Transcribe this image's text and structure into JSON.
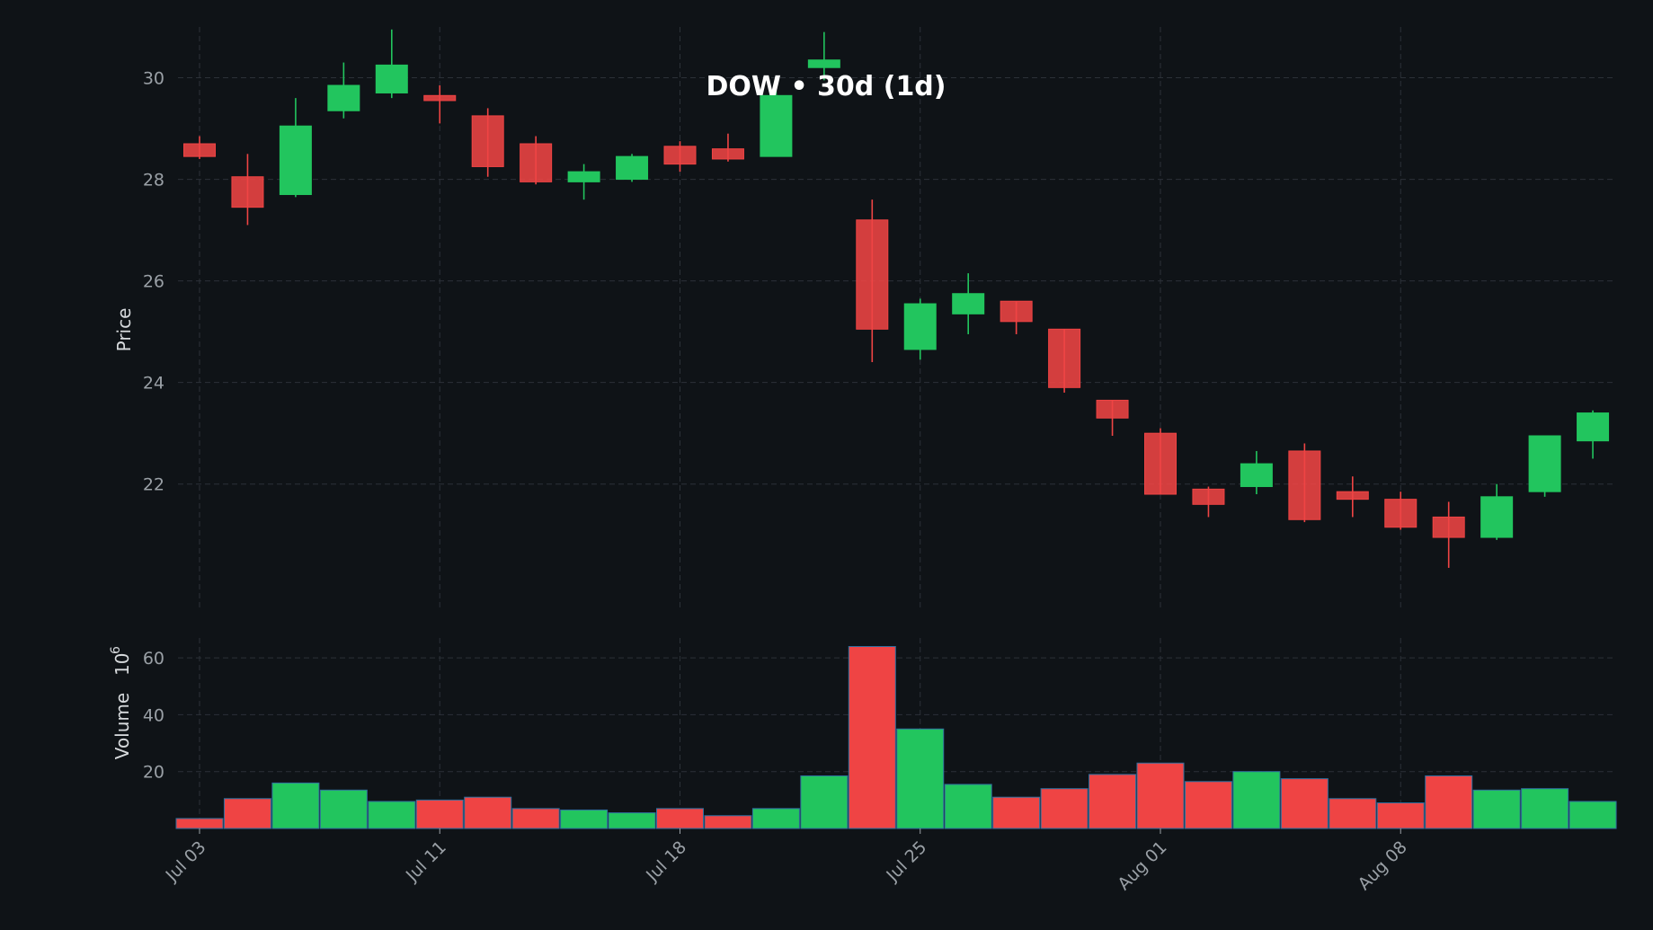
{
  "chart_data": {
    "type": "candlestick",
    "title": "DOW • 30d (1d)",
    "price_panel": {
      "ylabel": "Price",
      "ylim": [
        19.5,
        31.0
      ],
      "yticks": [
        22,
        24,
        26,
        28,
        30
      ],
      "grid": true
    },
    "volume_panel": {
      "ylabel": "Volume",
      "yunit_exponent": "6",
      "ylim": [
        0,
        67
      ],
      "yticks": [
        20,
        40,
        60
      ],
      "grid": true
    },
    "xtick_labels": [
      "Jul 03",
      "Jul 11",
      "Jul 18",
      "Jul 25",
      "Aug 01",
      "Aug 08"
    ],
    "xtick_index": [
      0,
      5,
      10,
      15,
      20,
      25
    ],
    "colors": {
      "up": "#22c55e",
      "down": "#ef4444",
      "background": "#0f1317"
    },
    "candles": [
      {
        "date": "Jul 03",
        "open": 28.7,
        "high": 28.85,
        "low": 28.4,
        "close": 28.45,
        "volume": 3.5
      },
      {
        "date": "Jul 05",
        "open": 28.05,
        "high": 28.5,
        "low": 27.1,
        "close": 27.45,
        "volume": 10.5
      },
      {
        "date": "Jul 06",
        "open": 27.7,
        "high": 29.6,
        "low": 27.65,
        "close": 29.05,
        "volume": 16.0
      },
      {
        "date": "Jul 07",
        "open": 29.35,
        "high": 30.3,
        "low": 29.2,
        "close": 29.85,
        "volume": 13.5
      },
      {
        "date": "Jul 10",
        "open": 29.7,
        "high": 30.95,
        "low": 29.6,
        "close": 30.25,
        "volume": 9.5
      },
      {
        "date": "Jul 11",
        "open": 29.65,
        "high": 29.85,
        "low": 29.1,
        "close": 29.55,
        "volume": 10.0
      },
      {
        "date": "Jul 12",
        "open": 29.25,
        "high": 29.4,
        "low": 28.05,
        "close": 28.25,
        "volume": 11.0
      },
      {
        "date": "Jul 13",
        "open": 28.7,
        "high": 28.85,
        "low": 27.9,
        "close": 27.95,
        "volume": 7.0
      },
      {
        "date": "Jul 14",
        "open": 27.95,
        "high": 28.3,
        "low": 27.6,
        "close": 28.15,
        "volume": 6.5
      },
      {
        "date": "Jul 17",
        "open": 28.0,
        "high": 28.5,
        "low": 27.95,
        "close": 28.45,
        "volume": 5.5
      },
      {
        "date": "Jul 18",
        "open": 28.65,
        "high": 28.75,
        "low": 28.15,
        "close": 28.3,
        "volume": 7.0
      },
      {
        "date": "Jul 19",
        "open": 28.6,
        "high": 28.9,
        "low": 28.35,
        "close": 28.4,
        "volume": 4.5
      },
      {
        "date": "Jul 20",
        "open": 28.45,
        "high": 29.75,
        "low": 28.45,
        "close": 29.65,
        "volume": 7.0
      },
      {
        "date": "Jul 21",
        "open": 30.2,
        "high": 30.9,
        "low": 29.95,
        "close": 30.35,
        "volume": 18.5
      },
      {
        "date": "Jul 24",
        "open": 27.2,
        "high": 27.6,
        "low": 24.4,
        "close": 25.05,
        "volume": 64.0
      },
      {
        "date": "Jul 25",
        "open": 24.65,
        "high": 25.65,
        "low": 24.45,
        "close": 25.55,
        "volume": 35.0
      },
      {
        "date": "Jul 26",
        "open": 25.35,
        "high": 26.15,
        "low": 24.95,
        "close": 25.75,
        "volume": 15.5
      },
      {
        "date": "Jul 27",
        "open": 25.6,
        "high": 25.6,
        "low": 24.95,
        "close": 25.2,
        "volume": 11.0
      },
      {
        "date": "Jul 28",
        "open": 25.05,
        "high": 25.05,
        "low": 23.8,
        "close": 23.9,
        "volume": 14.0
      },
      {
        "date": "Jul 31",
        "open": 23.65,
        "high": 23.65,
        "low": 22.95,
        "close": 23.3,
        "volume": 19.0
      },
      {
        "date": "Aug 01",
        "open": 23.0,
        "high": 23.1,
        "low": 21.8,
        "close": 21.8,
        "volume": 23.0
      },
      {
        "date": "Aug 02",
        "open": 21.9,
        "high": 21.95,
        "low": 21.35,
        "close": 21.6,
        "volume": 16.5
      },
      {
        "date": "Aug 03",
        "open": 21.95,
        "high": 22.65,
        "low": 21.8,
        "close": 22.4,
        "volume": 20.0
      },
      {
        "date": "Aug 04",
        "open": 22.65,
        "high": 22.8,
        "low": 21.25,
        "close": 21.3,
        "volume": 17.5
      },
      {
        "date": "Aug 07",
        "open": 21.85,
        "high": 22.15,
        "low": 21.35,
        "close": 21.7,
        "volume": 10.5
      },
      {
        "date": "Aug 08",
        "open": 21.7,
        "high": 21.85,
        "low": 21.1,
        "close": 21.15,
        "volume": 9.0
      },
      {
        "date": "Aug 09",
        "open": 21.35,
        "high": 21.65,
        "low": 20.35,
        "close": 20.95,
        "volume": 18.5
      },
      {
        "date": "Aug 10",
        "open": 20.95,
        "high": 22.0,
        "low": 20.9,
        "close": 21.75,
        "volume": 13.5
      },
      {
        "date": "Aug 11",
        "open": 21.85,
        "high": 22.95,
        "low": 21.75,
        "close": 22.95,
        "volume": 14.0
      },
      {
        "date": "Aug 14",
        "open": 22.85,
        "high": 23.45,
        "low": 22.5,
        "close": 23.4,
        "volume": 9.5
      }
    ]
  }
}
